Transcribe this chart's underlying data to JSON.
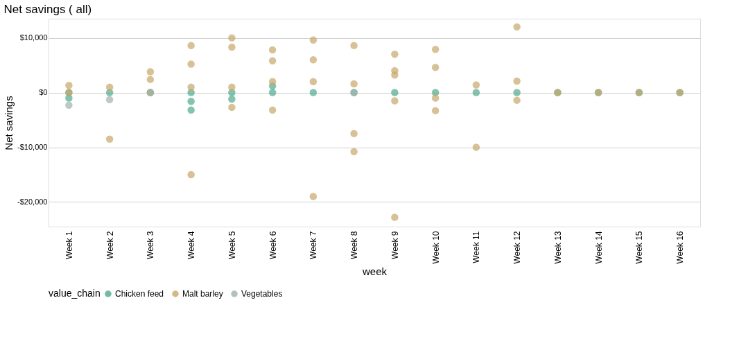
{
  "chart_data": {
    "type": "scatter",
    "title": "Net savings ( all)",
    "xlabel": "week",
    "ylabel": "Net savings",
    "legend_title": "value_chain",
    "legend": "bottom",
    "grid": "y",
    "marker": "circle",
    "categories": [
      "Week 1",
      "Week 2",
      "Week 3",
      "Week 4",
      "Week 5",
      "Week 6",
      "Week 7",
      "Week 8",
      "Week 9",
      "Week 10",
      "Week 11",
      "Week 12",
      "Week 13",
      "Week 14",
      "Week 15",
      "Week 16"
    ],
    "ylim": [
      -24500,
      13500
    ],
    "yticks": [
      {
        "value": -20000,
        "label": "-$20,000"
      },
      {
        "value": -10000,
        "label": "-$10,000"
      },
      {
        "value": 0,
        "label": "$0"
      },
      {
        "value": 10000,
        "label": "$10,000"
      }
    ],
    "series": [
      {
        "name": "Chicken feed",
        "color": "#4fa98f",
        "x": [
          "Week 1",
          "Week 2",
          "Week 3",
          "Week 4",
          "Week 4",
          "Week 4",
          "Week 5",
          "Week 5",
          "Week 6",
          "Week 7",
          "Week 8",
          "Week 9",
          "Week 10",
          "Week 11",
          "Week 12",
          "Week 13",
          "Week 14",
          "Week 15",
          "Week 16",
          "Week 1",
          "Week 6"
        ],
        "values": [
          -1000,
          0,
          0,
          0,
          -3200,
          -1600,
          0,
          -1200,
          0,
          0,
          0,
          0,
          0,
          0,
          0,
          0,
          0,
          0,
          0,
          0,
          1200
        ]
      },
      {
        "name": "Malt barley",
        "color": "#c9a66b",
        "x": [
          "Week 1",
          "Week 1",
          "Week 2",
          "Week 2",
          "Week 3",
          "Week 3",
          "Week 3",
          "Week 4",
          "Week 4",
          "Week 4",
          "Week 4",
          "Week 5",
          "Week 5",
          "Week 5",
          "Week 5",
          "Week 6",
          "Week 6",
          "Week 6",
          "Week 6",
          "Week 7",
          "Week 7",
          "Week 7",
          "Week 7",
          "Week 8",
          "Week 8",
          "Week 8",
          "Week 8",
          "Week 9",
          "Week 9",
          "Week 9",
          "Week 9",
          "Week 9",
          "Week 10",
          "Week 10",
          "Week 10",
          "Week 10",
          "Week 11",
          "Week 11",
          "Week 12",
          "Week 12",
          "Week 12",
          "Week 13",
          "Week 14",
          "Week 15",
          "Week 16"
        ],
        "values": [
          1300,
          0,
          -8500,
          1000,
          3800,
          2400,
          0,
          5200,
          8600,
          -15000,
          1000,
          10000,
          8300,
          -2700,
          1000,
          5800,
          7800,
          -3200,
          2000,
          9600,
          6000,
          2000,
          -19000,
          8600,
          1600,
          -7500,
          -10800,
          7000,
          3200,
          4000,
          -22800,
          -1500,
          7900,
          4600,
          -3300,
          -1000,
          1400,
          -10000,
          12000,
          2100,
          -1400,
          0,
          0,
          0,
          0
        ]
      },
      {
        "name": "Vegetables",
        "color": "#9fb3aa",
        "x": [
          "Week 1",
          "Week 2",
          "Week 3",
          "Week 8"
        ],
        "values": [
          -2300,
          -1300,
          0,
          0
        ]
      }
    ]
  }
}
